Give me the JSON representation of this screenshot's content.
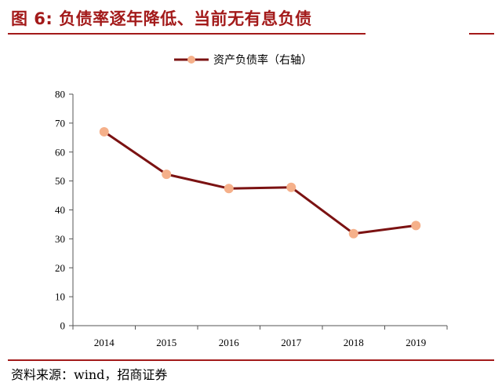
{
  "header": {
    "title": "图 6:  负债率逐年降低、当前无有息负债"
  },
  "footer": {
    "source": "资料来源：wind，招商证券"
  },
  "colors": {
    "accent": "#a31a1a",
    "line": "#7b1212",
    "marker": "#f5b08a"
  },
  "chart_data": {
    "type": "line",
    "categories": [
      "2014",
      "2015",
      "2016",
      "2017",
      "2018",
      "2019"
    ],
    "series": [
      {
        "name": "资产负债率（右轴）",
        "values": [
          67,
          52.3,
          47.4,
          47.8,
          31.8,
          34.6
        ]
      }
    ],
    "ylim": [
      0,
      80
    ],
    "yticks": [
      "0",
      "10",
      "20",
      "30",
      "40",
      "50",
      "60",
      "70",
      "80"
    ],
    "legend": "top-center",
    "grid": false
  }
}
